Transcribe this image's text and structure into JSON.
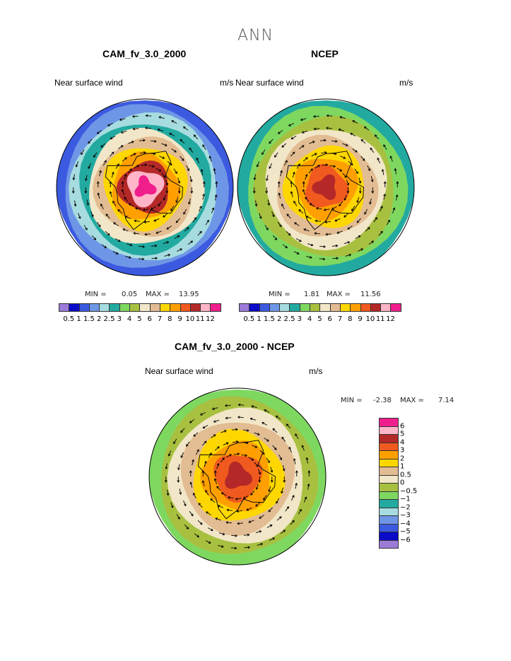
{
  "figure": {
    "suptitle": "ANN",
    "colors": [
      "#9c7ad8",
      "#0a0ac8",
      "#3c5ae0",
      "#6e96e6",
      "#a6dce0",
      "#22aaa0",
      "#7ed860",
      "#a8c040",
      "#f2e6c8",
      "#e2bc92",
      "#ffd700",
      "#ffa000",
      "#f05a1e",
      "#b42828",
      "#ffb4c8",
      "#f01e8c"
    ],
    "diff_colors": [
      "#f01e8c",
      "#ffb4c8",
      "#b42828",
      "#f05a1e",
      "#ffa000",
      "#ffd700",
      "#e2bc92",
      "#f2e6c8",
      "#a8c040",
      "#7ed860",
      "#22aaa0",
      "#a6dce0",
      "#6e96e6",
      "#3c5ae0",
      "#0a0ac8",
      "#9c7ad8"
    ]
  },
  "chart_data": [
    {
      "type": "heatmap",
      "projection": "polar-stereographic-south",
      "title": "CAM_fv_3.0_2000",
      "left_label": "Near surface wind",
      "right_label": "m/s",
      "min_label": "MIN =",
      "min_value": "0.05",
      "max_label": "MAX =",
      "max_value": "13.95",
      "levels": [
        "0.5",
        "1",
        "1.5",
        "2",
        "2.5",
        "3",
        "4",
        "5",
        "6",
        "7",
        "8",
        "9",
        "10",
        "11",
        "12"
      ],
      "bands": [
        2,
        3,
        4,
        5,
        8,
        9,
        10,
        11,
        13,
        14,
        15
      ]
    },
    {
      "type": "heatmap",
      "projection": "polar-stereographic-south",
      "title": "NCEP",
      "left_label": "Near surface wind",
      "right_label": "m/s",
      "min_label": "MIN =",
      "min_value": "1.81",
      "max_label": "MAX =",
      "max_value": "11.56",
      "levels": [
        "0.5",
        "1",
        "1.5",
        "2",
        "2.5",
        "3",
        "4",
        "5",
        "6",
        "7",
        "8",
        "9",
        "10",
        "11",
        "12"
      ],
      "bands": [
        5,
        6,
        7,
        8,
        9,
        10,
        11,
        12,
        13
      ]
    },
    {
      "type": "heatmap",
      "projection": "polar-stereographic-south",
      "title": "CAM_fv_3.0_2000 - NCEP",
      "left_label": "Near surface wind",
      "right_label": "m/s",
      "min_label": "MIN =",
      "min_value": "-2.38",
      "max_label": "MAX =",
      "max_value": "7.14",
      "levels": [
        "6",
        "5",
        "4",
        "3",
        "2",
        "1",
        "0.5",
        "0",
        "−0.5",
        "−1",
        "−2",
        "−3",
        "−4",
        "−5",
        "−6"
      ],
      "bands": [
        9,
        8,
        7,
        6,
        5,
        4,
        3,
        2
      ]
    }
  ]
}
